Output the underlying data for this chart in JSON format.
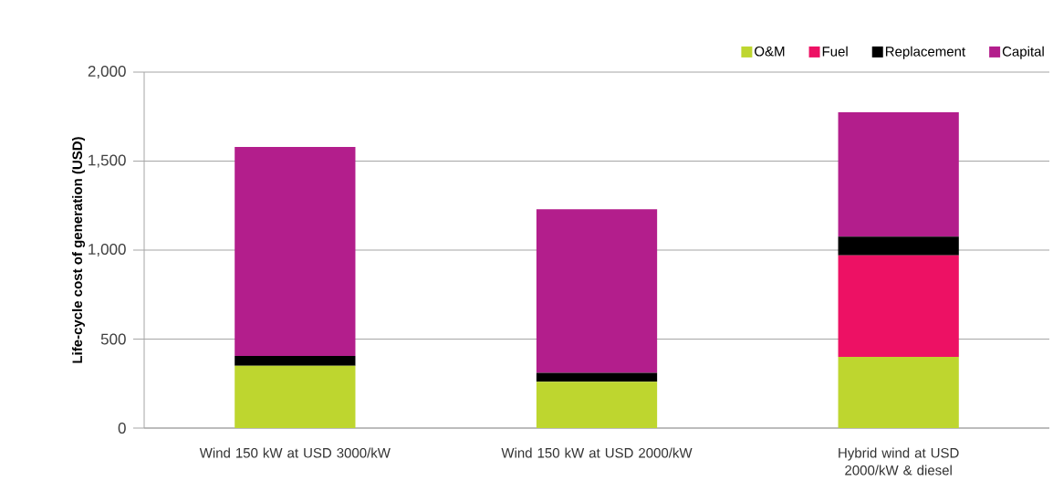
{
  "chart_data": {
    "type": "bar",
    "stacked": true,
    "ylabel": "Life-cycle cost of generation (USD)",
    "categories": [
      "Wind 150 kW at USD 3000/kW",
      "Wind 150 kW at USD 2000/kW",
      "Hybrid wind at USD 2000/kW & diesel"
    ],
    "series": [
      {
        "name": "O&M",
        "color": "#bed62f",
        "values": [
          350,
          260,
          400
        ]
      },
      {
        "name": "Fuel",
        "color": "#ed1164",
        "values": [
          0,
          0,
          570
        ]
      },
      {
        "name": "Replacement",
        "color": "#000000",
        "values": [
          55,
          50,
          105
        ]
      },
      {
        "name": "Capital",
        "color": "#b31e8c",
        "values": [
          1175,
          920,
          700
        ]
      }
    ],
    "ylim": [
      0,
      2000
    ],
    "yticks": [
      0,
      {
        "value": 500,
        "label": "500"
      },
      {
        "value": 1000,
        "label": "1,000"
      },
      {
        "value": 1500,
        "label": "1,500"
      },
      {
        "value": 2000,
        "label": "2,000"
      }
    ],
    "grid": "y",
    "legend": "top right"
  }
}
